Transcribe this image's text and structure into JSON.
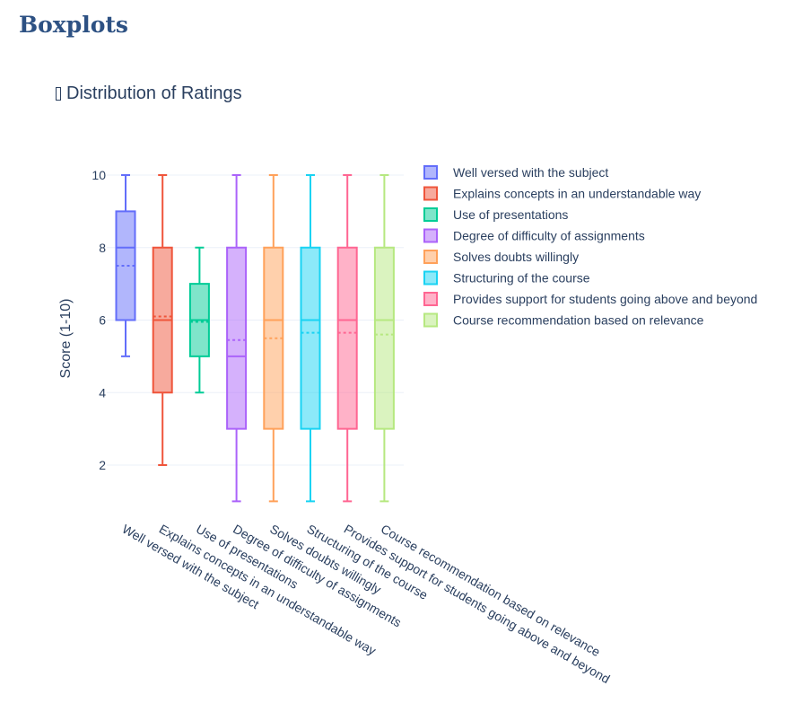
{
  "page": {
    "heading": "Boxplots"
  },
  "chart_data": {
    "type": "box",
    "title": "Distribution of Ratings",
    "title_icon": "chart-icon",
    "ylabel": "Score (1-10)",
    "xlabel": "",
    "ylim": [
      0.5,
      10.5
    ],
    "yticks": [
      2,
      4,
      6,
      8,
      10
    ],
    "grid": true,
    "legend_position": "right",
    "show_mean": true,
    "categories": [
      "Well versed with the subject",
      "Explains concepts in an understandable way",
      "Use of presentations",
      "Degree of difficulty of assignments",
      "Solves doubts willingly",
      "Structuring of the course",
      "Provides support for students going above and beyond",
      "Course recommendation based on relevance"
    ],
    "series": [
      {
        "name": "Well versed with the subject",
        "color": "#636efa",
        "min": 5,
        "q1": 6,
        "median": 8,
        "q3": 9,
        "max": 10,
        "mean": 7.5
      },
      {
        "name": "Explains concepts in an understandable way",
        "color": "#ef553b",
        "min": 2,
        "q1": 4,
        "median": 6,
        "q3": 8,
        "max": 10,
        "mean": 6.1
      },
      {
        "name": "Use of presentations",
        "color": "#00cc96",
        "min": 4,
        "q1": 5,
        "median": 6,
        "q3": 7,
        "max": 8,
        "mean": 5.95
      },
      {
        "name": "Degree of difficulty of assignments",
        "color": "#ab63fa",
        "min": 1,
        "q1": 3,
        "median": 5,
        "q3": 8,
        "max": 10,
        "mean": 5.45
      },
      {
        "name": "Solves doubts willingly",
        "color": "#ffa15a",
        "min": 1,
        "q1": 3,
        "median": 6,
        "q3": 8,
        "max": 10,
        "mean": 5.5
      },
      {
        "name": "Structuring of the course",
        "color": "#19d3f3",
        "min": 1,
        "q1": 3,
        "median": 6,
        "q3": 8,
        "max": 10,
        "mean": 5.65
      },
      {
        "name": "Provides support for students going above and beyond",
        "color": "#ff6692",
        "min": 1,
        "q1": 3,
        "median": 6,
        "q3": 8,
        "max": 10,
        "mean": 5.65
      },
      {
        "name": "Course recommendation based on relevance",
        "color": "#b6e880",
        "min": 1,
        "q1": 3,
        "median": 6,
        "q3": 8,
        "max": 10,
        "mean": 5.6
      }
    ]
  }
}
